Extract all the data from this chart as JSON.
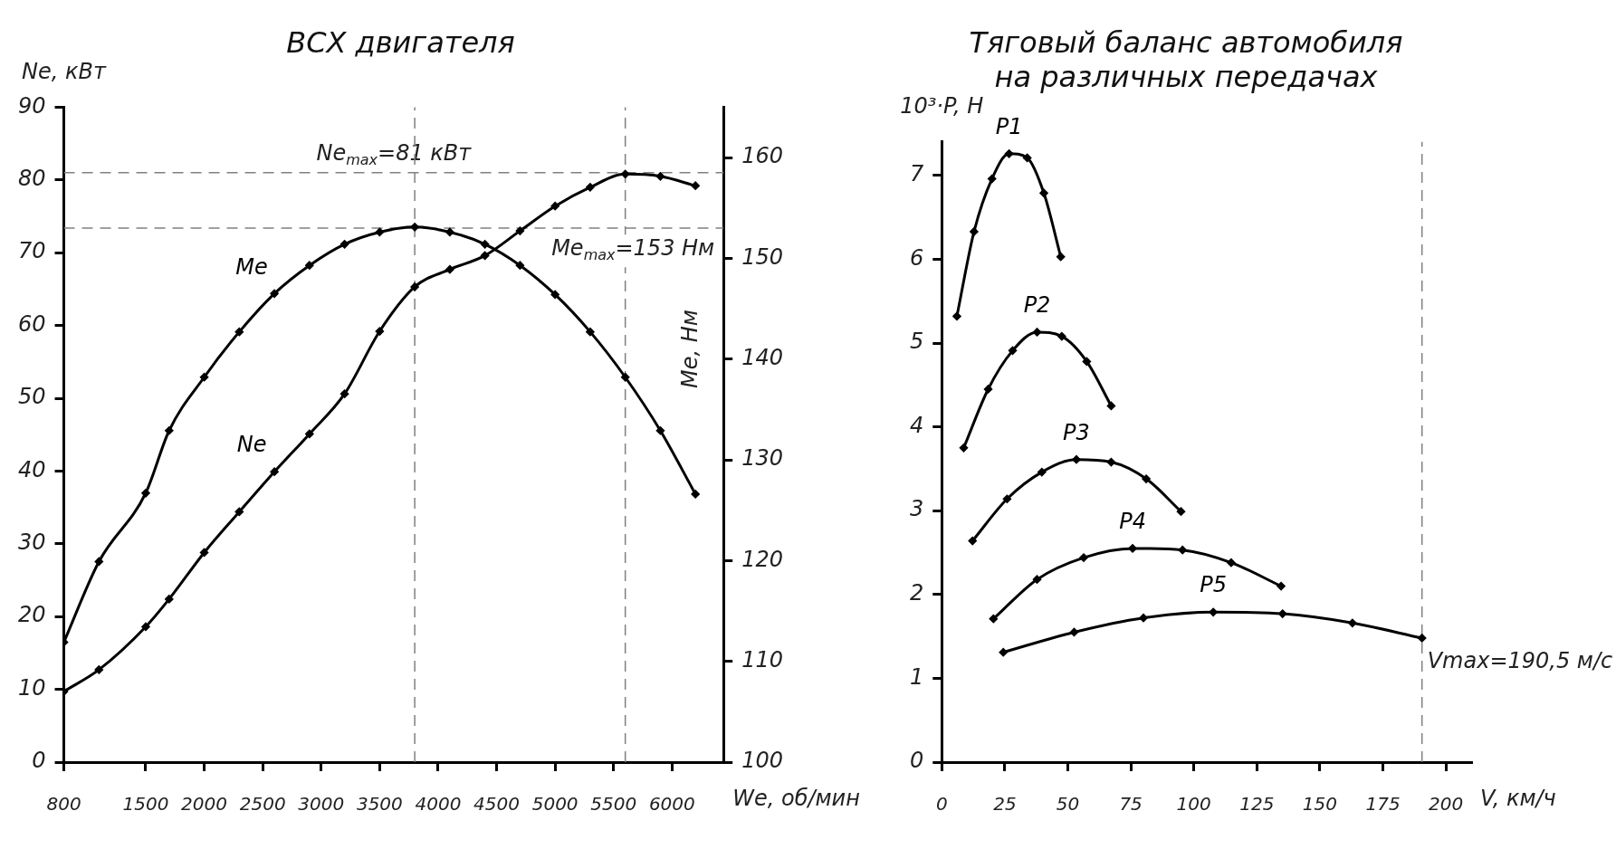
{
  "chart_data": [
    {
      "type": "line",
      "title": "ВСХ двигателя",
      "xlabel": "We, об/мин",
      "ylabel": "Ne, кВт",
      "y2label": "Me, Нм",
      "xlim": [
        800,
        6440
      ],
      "xticks": [
        800,
        1500,
        2000,
        2500,
        3000,
        3500,
        4000,
        4500,
        5000,
        5500,
        6000
      ],
      "ylim": [
        0,
        90
      ],
      "yticks": [
        0,
        10,
        20,
        30,
        40,
        50,
        60,
        70,
        80,
        90
      ],
      "y2lim": [
        100,
        165
      ],
      "y2ticks": [
        100,
        110,
        120,
        130,
        140,
        150,
        160
      ],
      "grid": false,
      "legend": false,
      "marker": "diamond",
      "line_style": "solid",
      "series": [
        {
          "name": "Ne",
          "color": "#000000",
          "x": [
            800,
            1100,
            1500,
            1700,
            2000,
            2300,
            2600,
            2900,
            3200,
            3500,
            3800,
            4100,
            4400,
            4700,
            5000,
            5300,
            5600,
            5900,
            6200
          ],
          "values": [
            9.7,
            12.7,
            18.6,
            22.4,
            28.8,
            34.4,
            39.9,
            45.1,
            50.6,
            59.2,
            65.3,
            67.7,
            69.6,
            73.0,
            76.4,
            79.0,
            80.8,
            80.5,
            79.2
          ]
        },
        {
          "name": "Me",
          "color": "#000000",
          "axis": "y2",
          "x": [
            800,
            1100,
            1500,
            1700,
            2000,
            2300,
            2600,
            2900,
            3200,
            3500,
            3800,
            4100,
            4400,
            4700,
            5000,
            5300,
            5600,
            5900,
            6200
          ],
          "values": [
            111.9,
            119.9,
            126.7,
            132.9,
            138.2,
            142.7,
            146.5,
            149.3,
            151.4,
            152.6,
            153.1,
            152.6,
            151.4,
            149.3,
            146.4,
            142.7,
            138.2,
            132.9,
            126.6
          ]
        }
      ],
      "ref_lines": [
        {
          "axis": "y",
          "value": 81,
          "label": "Ne$_{max}$=81 кВт",
          "color": "#808080",
          "line_style": "dashed"
        },
        {
          "axis": "x",
          "value": 5600,
          "color": "#808080",
          "line_style": "dashed"
        },
        {
          "axis": "y2",
          "value": 153,
          "label": "Me$_{max}$=153 Нм",
          "color": "#808080",
          "line_style": "dashed"
        },
        {
          "axis": "x",
          "value": 3800,
          "color": "#808080",
          "line_style": "dashed"
        }
      ]
    },
    {
      "type": "line",
      "title": "Тяговый баланс автомобиля\nна различных передачах",
      "xlabel": "V, км/ч",
      "ylabel": "10³·P, Н",
      "xlim": [
        0,
        210
      ],
      "xticks": [
        0,
        25,
        50,
        75,
        100,
        125,
        150,
        175,
        200
      ],
      "ylim": [
        0,
        7.4
      ],
      "yticks": [
        0,
        1,
        2,
        3,
        4,
        5,
        6,
        7
      ],
      "grid": false,
      "legend": false,
      "marker": "diamond",
      "line_style": "solid",
      "series": [
        {
          "name": "P1",
          "color": "#000000",
          "x": [
            6.0,
            12.8,
            19.9,
            26.7,
            33.9,
            40.5,
            47.2
          ],
          "values": [
            5.32,
            6.33,
            6.96,
            7.26,
            7.21,
            6.79,
            6.03
          ]
        },
        {
          "name": "P2",
          "color": "#000000",
          "x": [
            8.7,
            18.4,
            28.1,
            37.8,
            47.6,
            57.5,
            67.2
          ],
          "values": [
            3.75,
            4.45,
            4.91,
            5.13,
            5.08,
            4.78,
            4.25
          ]
        },
        {
          "name": "P3",
          "color": "#000000",
          "x": [
            12.2,
            25.9,
            39.7,
            53.4,
            67.2,
            81.1,
            94.9
          ],
          "values": [
            2.64,
            3.14,
            3.46,
            3.61,
            3.58,
            3.38,
            2.99
          ]
        },
        {
          "name": "P4",
          "color": "#000000",
          "x": [
            20.5,
            37.8,
            56.3,
            75.7,
            95.5,
            114.8,
            134.6
          ],
          "values": [
            1.71,
            2.18,
            2.44,
            2.55,
            2.53,
            2.38,
            2.1
          ]
        },
        {
          "name": "P5",
          "color": "#000000",
          "x": [
            24.4,
            52.5,
            80.0,
            107.7,
            135.2,
            162.9,
            190.5
          ],
          "values": [
            1.31,
            1.55,
            1.72,
            1.79,
            1.77,
            1.66,
            1.48
          ]
        }
      ],
      "ref_lines": [
        {
          "axis": "x",
          "value": 190.5,
          "label": "Vmax=190,5 м/с",
          "color": "#808080",
          "line_style": "dashed"
        }
      ]
    }
  ]
}
